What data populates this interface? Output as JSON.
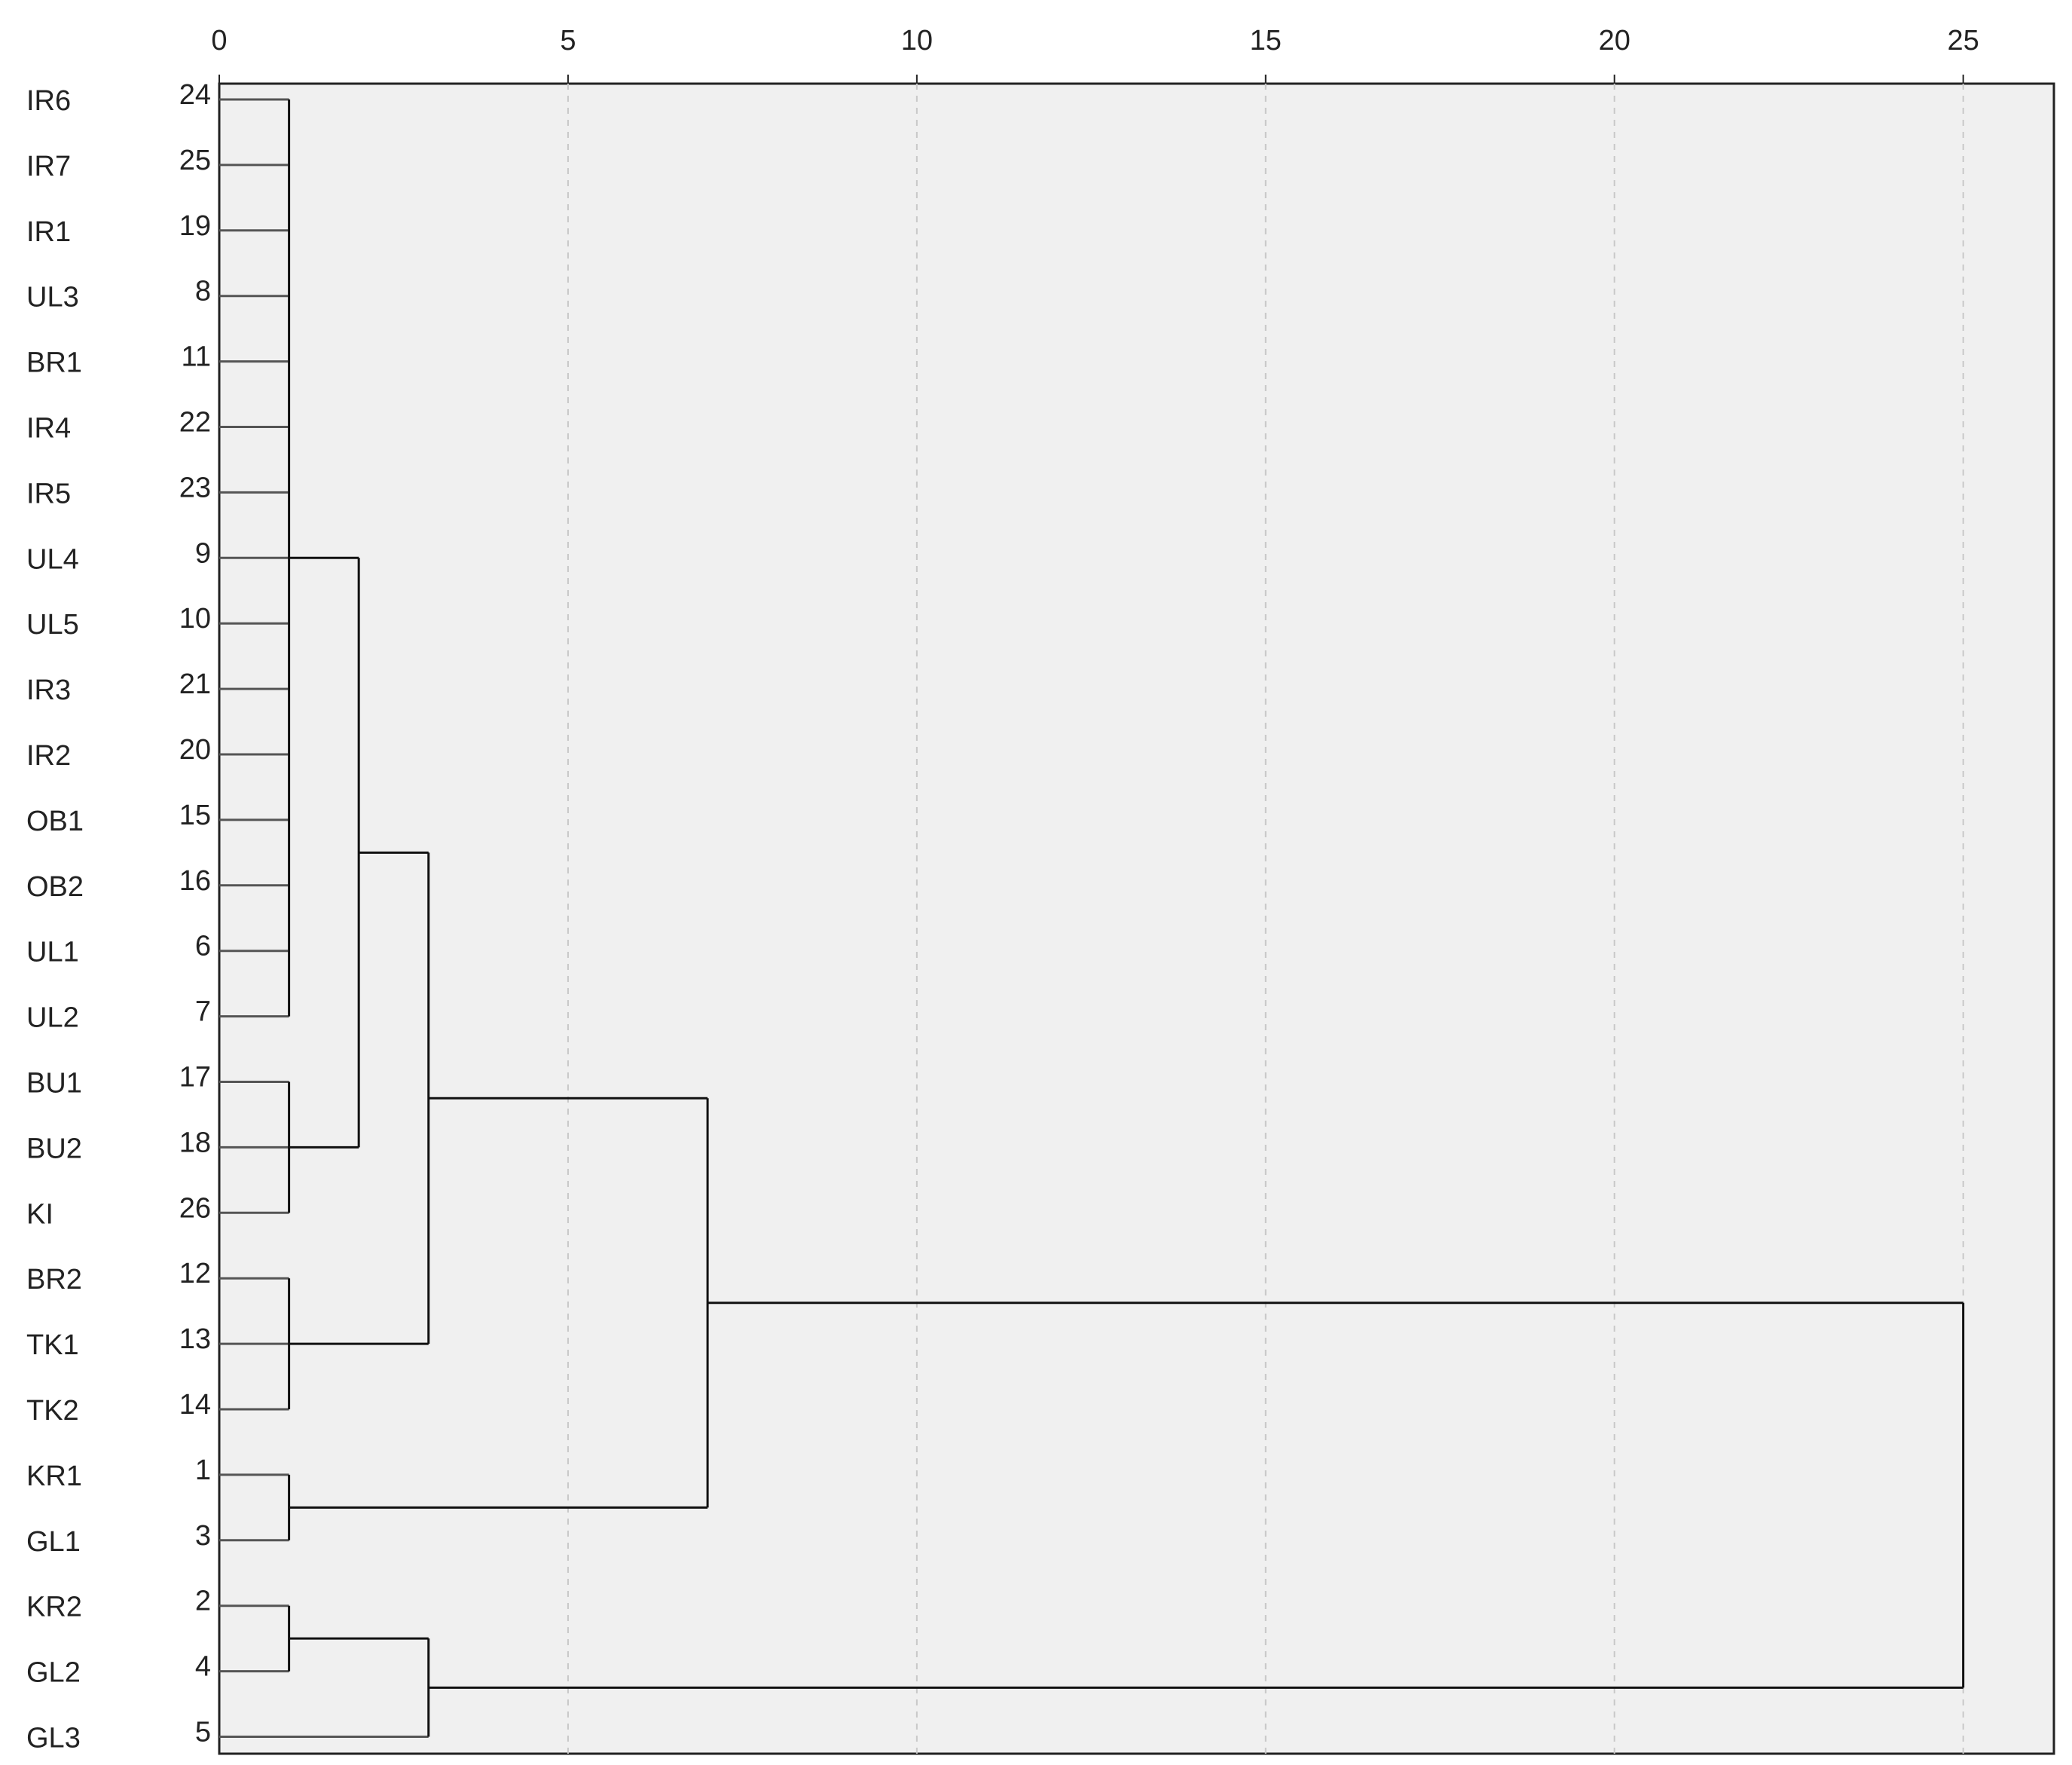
{
  "chart_data": {
    "type": "dendrogram",
    "xlim": [
      0,
      26.3
    ],
    "xticks": [
      0,
      5,
      10,
      15,
      20,
      25
    ],
    "grid": true,
    "leaves": [
      {
        "label": "IR6",
        "case": 24
      },
      {
        "label": "IR7",
        "case": 25
      },
      {
        "label": "IR1",
        "case": 19
      },
      {
        "label": "UL3",
        "case": 8
      },
      {
        "label": "BR1",
        "case": 11
      },
      {
        "label": "IR4",
        "case": 22
      },
      {
        "label": "IR5",
        "case": 23
      },
      {
        "label": "UL4",
        "case": 9
      },
      {
        "label": "UL5",
        "case": 10
      },
      {
        "label": "IR3",
        "case": 21
      },
      {
        "label": "IR2",
        "case": 20
      },
      {
        "label": "OB1",
        "case": 15
      },
      {
        "label": "OB2",
        "case": 16
      },
      {
        "label": "UL1",
        "case": 6
      },
      {
        "label": "UL2",
        "case": 7
      },
      {
        "label": "BU1",
        "case": 17
      },
      {
        "label": "BU2",
        "case": 18
      },
      {
        "label": "KI",
        "case": 26
      },
      {
        "label": "BR2",
        "case": 12
      },
      {
        "label": "TK1",
        "case": 13
      },
      {
        "label": "TK2",
        "case": 14
      },
      {
        "label": "KR1",
        "case": 1
      },
      {
        "label": "GL1",
        "case": 3
      },
      {
        "label": "KR2",
        "case": 2
      },
      {
        "label": "GL2",
        "case": 4
      },
      {
        "label": "GL3",
        "case": 5
      }
    ],
    "merges": [
      {
        "height": 1,
        "leaves": [
          0,
          1,
          2,
          3,
          4,
          5,
          6,
          7,
          8,
          9,
          10,
          11,
          12,
          13,
          14
        ],
        "clusters": []
      },
      {
        "height": 1,
        "leaves": [
          15,
          16,
          17
        ],
        "clusters": []
      },
      {
        "height": 1,
        "leaves": [
          18,
          19,
          20
        ],
        "clusters": []
      },
      {
        "height": 1,
        "leaves": [
          21,
          22
        ],
        "clusters": []
      },
      {
        "height": 1,
        "leaves": [
          23,
          24
        ],
        "clusters": []
      },
      {
        "height": 2,
        "leaves": [],
        "clusters": [
          0,
          1
        ]
      },
      {
        "height": 3,
        "leaves": [],
        "clusters": [
          5,
          2
        ]
      },
      {
        "height": 7,
        "leaves": [],
        "clusters": [
          6,
          3
        ]
      },
      {
        "height": 3,
        "leaves": [
          25
        ],
        "clusters": [
          4
        ]
      },
      {
        "height": 25,
        "leaves": [],
        "clusters": [
          7,
          8
        ]
      }
    ]
  }
}
